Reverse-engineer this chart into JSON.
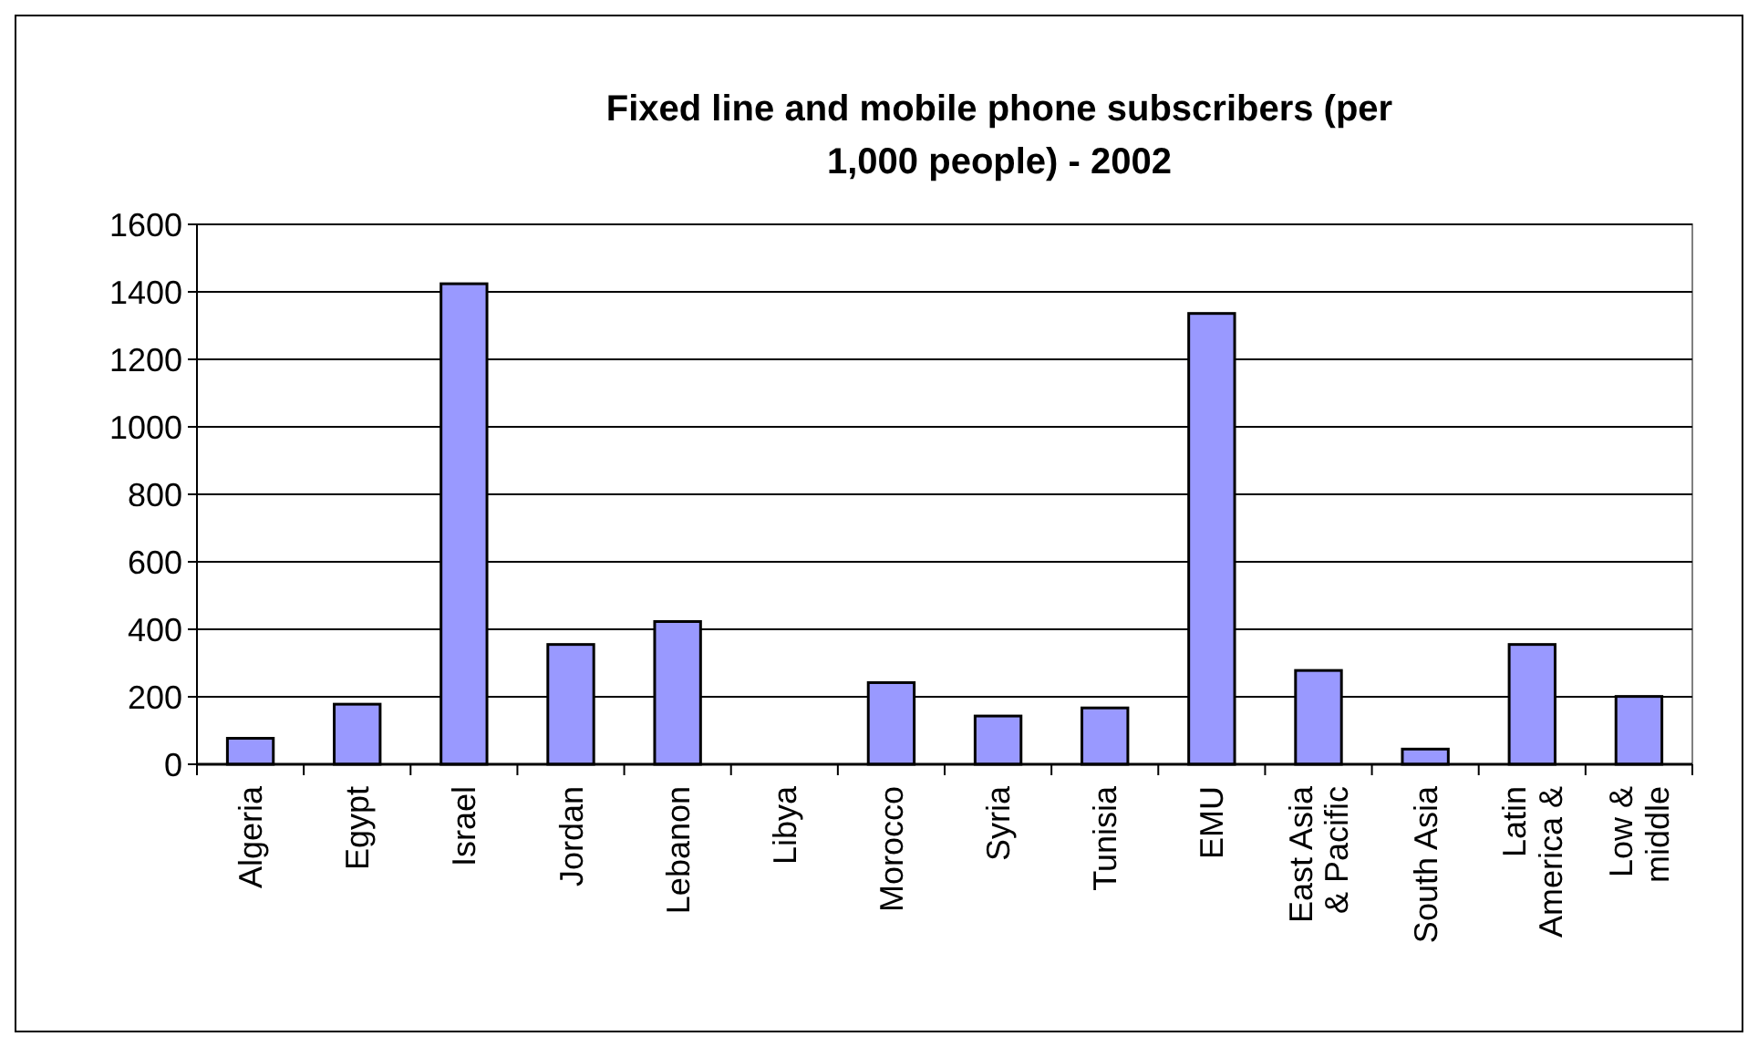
{
  "chart_data": {
    "type": "bar",
    "title": "Fixed line and mobile phone subscribers (per 1,000 people) - 2002",
    "categories": [
      "Algeria",
      "Egypt",
      "Israel",
      "Jordan",
      "Lebanon",
      "Libya",
      "Morocco",
      "Syria",
      "Tunisia",
      "EMU",
      "East Asia & Pacific",
      "South Asia",
      "Latin America &",
      "Low & middle"
    ],
    "values": [
      77,
      178,
      1424,
      355,
      423,
      null,
      242,
      143,
      167,
      1336,
      278,
      45,
      355,
      201
    ],
    "color": "#9999ff",
    "ylim": [
      0,
      1600
    ],
    "yticks": [
      0,
      200,
      400,
      600,
      800,
      1000,
      1200,
      1400,
      1600
    ],
    "grid": "y"
  }
}
